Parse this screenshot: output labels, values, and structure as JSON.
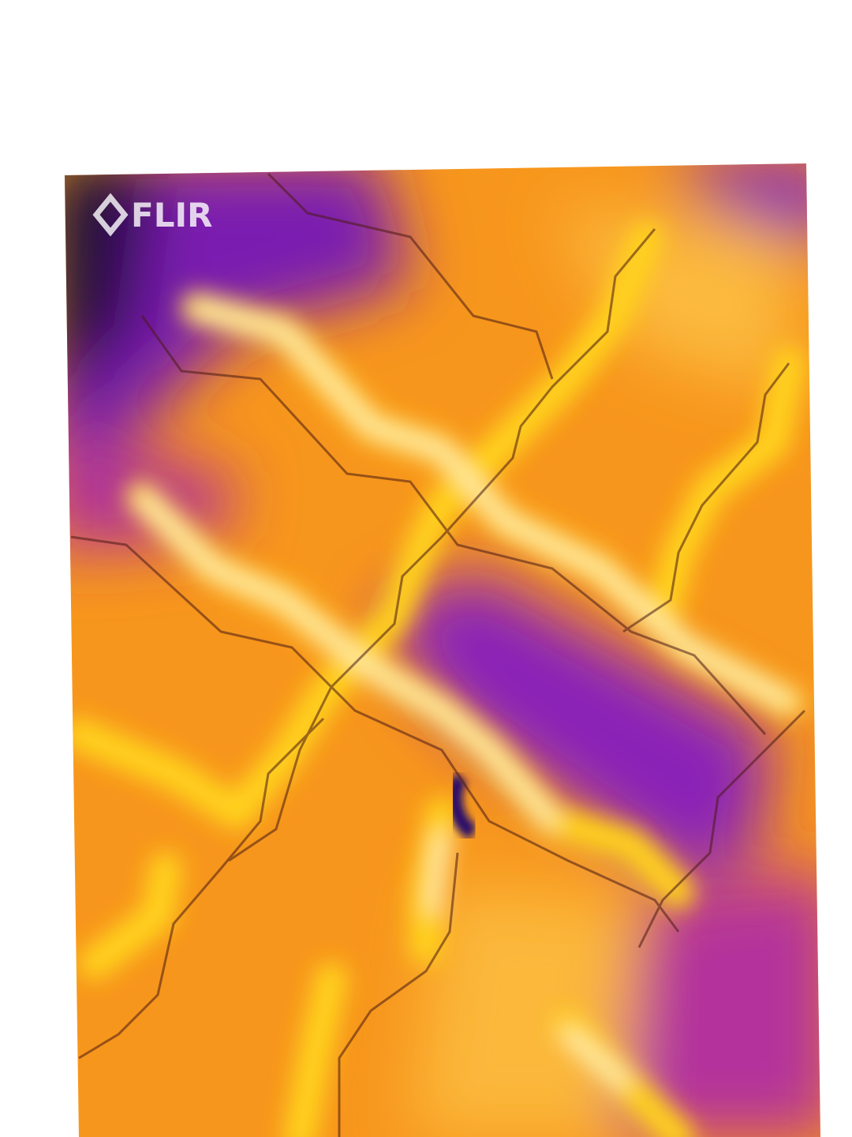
{
  "logo": {
    "text": "FLIR"
  }
}
